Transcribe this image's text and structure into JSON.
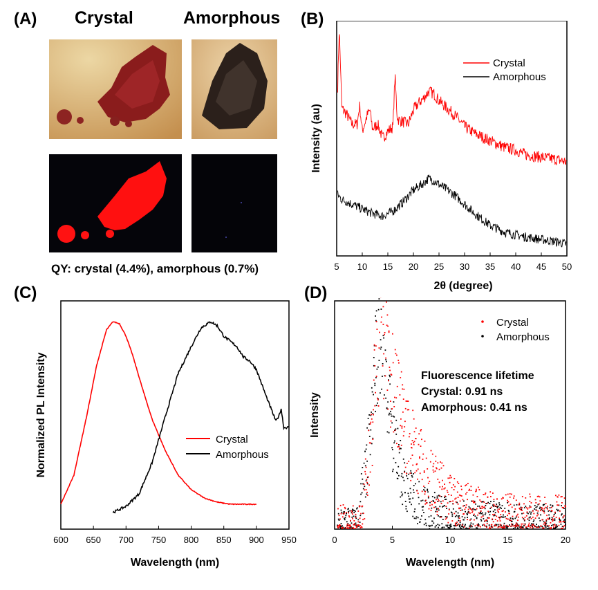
{
  "panels": {
    "a": {
      "label": "(A)",
      "crystal_title": "Crystal",
      "amorphous_title": "Amorphous",
      "qy_caption": "QY: crystal (4.4%), amorphous (0.7%)"
    },
    "b": {
      "label": "(B)"
    },
    "c": {
      "label": "(C)"
    },
    "d": {
      "label": "(D)"
    }
  },
  "colors": {
    "crystal": "#ff0000",
    "amorphous": "#000000"
  },
  "chart_data": [
    {
      "type": "line",
      "panel": "B",
      "xlabel": "2θ (degree)",
      "ylabel": "Intensity (au)",
      "xlim": [
        5,
        50
      ],
      "ylim": [
        0,
        100
      ],
      "xticks": [
        5,
        10,
        15,
        20,
        25,
        30,
        35,
        40,
        45,
        50
      ],
      "yticks_shown": false,
      "legend": "top-right",
      "series": [
        {
          "name": "Crystal",
          "color": "#ff0000",
          "x": [
            5.2,
            5.5,
            5.7,
            6,
            7,
            8,
            9,
            9.5,
            10,
            11,
            11.5,
            12,
            13,
            14,
            15,
            16,
            16.4,
            16.8,
            17,
            18,
            19,
            20,
            21,
            22,
            23,
            24,
            25,
            26,
            28,
            30,
            32,
            35,
            38,
            40,
            42,
            45,
            48,
            50
          ],
          "y": [
            72,
            97,
            84,
            63,
            60,
            56,
            56,
            64,
            53,
            60,
            62,
            54,
            56,
            50,
            53,
            55,
            77,
            60,
            58,
            57,
            56,
            62,
            65,
            67,
            70,
            69,
            66,
            64,
            60,
            55,
            52,
            49,
            46,
            45,
            43,
            42,
            41,
            40
          ]
        },
        {
          "name": "Amorphous",
          "color": "#000000",
          "x": [
            5.2,
            6,
            8,
            10,
            12,
            14,
            16,
            18,
            20,
            22,
            23,
            24,
            26,
            28,
            30,
            32,
            35,
            38,
            40,
            42,
            45,
            48,
            50
          ],
          "y": [
            26,
            24,
            22,
            20,
            18,
            17,
            19,
            23,
            28,
            31,
            33,
            32,
            29,
            26,
            22,
            18,
            13,
            10,
            9,
            8,
            7,
            6,
            5
          ]
        }
      ]
    },
    {
      "type": "line",
      "panel": "C",
      "xlabel": "Wavelength (nm)",
      "ylabel": "Normalized PL Intensity",
      "xlim": [
        600,
        950
      ],
      "ylim": [
        0,
        1.1
      ],
      "xticks": [
        600,
        650,
        700,
        750,
        800,
        850,
        900,
        950
      ],
      "yticks_shown": false,
      "legend": "center-right",
      "series": [
        {
          "name": "Crystal",
          "color": "#ff0000",
          "x": [
            600,
            620,
            640,
            655,
            670,
            680,
            690,
            700,
            710,
            725,
            740,
            760,
            780,
            800,
            820,
            840,
            860,
            880,
            900
          ],
          "y": [
            0.12,
            0.26,
            0.55,
            0.79,
            0.96,
            1.0,
            0.99,
            0.93,
            0.84,
            0.68,
            0.53,
            0.38,
            0.26,
            0.19,
            0.15,
            0.13,
            0.12,
            0.12,
            0.12
          ]
        },
        {
          "name": "Amorphous",
          "color": "#000000",
          "x": [
            680,
            700,
            720,
            740,
            760,
            780,
            800,
            815,
            830,
            840,
            850,
            870,
            880,
            890,
            900,
            915,
            930,
            935,
            938,
            942,
            950
          ],
          "y": [
            0.08,
            0.11,
            0.17,
            0.32,
            0.54,
            0.75,
            0.88,
            0.97,
            1.0,
            0.98,
            0.93,
            0.88,
            0.83,
            0.81,
            0.77,
            0.64,
            0.52,
            0.55,
            0.58,
            0.49,
            0.49
          ]
        }
      ]
    },
    {
      "type": "scatter",
      "panel": "D",
      "xlabel": "Wavelength (nm)",
      "ylabel": "Intensity",
      "xlim": [
        0,
        20
      ],
      "ylim": [
        0,
        1.1
      ],
      "xticks": [
        0,
        5,
        10,
        15,
        20
      ],
      "yticks_shown": false,
      "legend": "top-right",
      "annotation": {
        "title": "Fluorescence lifetime",
        "crystal": "Crystal: 0.91 ns",
        "amorphous": "Amorphous: 0.41 ns"
      },
      "series": [
        {
          "name": "Crystal",
          "color": "#ff0000",
          "rise": 0.6,
          "peak_x": 3.9,
          "tau": 2.2,
          "x": [
            2.4,
            3.0,
            3.5,
            3.9,
            4.5,
            5.0,
            6.0,
            7.0,
            8.0,
            9.0,
            10.0,
            12.0,
            14.0,
            16.0,
            18.0,
            20.0
          ],
          "y": [
            0.1,
            0.38,
            0.75,
            1.0,
            0.84,
            0.72,
            0.48,
            0.37,
            0.26,
            0.2,
            0.15,
            0.1,
            0.08,
            0.07,
            0.07,
            0.07
          ]
        },
        {
          "name": "Amorphous",
          "color": "#000000",
          "rise": 0.55,
          "peak_x": 3.8,
          "tau": 1.2,
          "x": [
            2.0,
            2.6,
            3.2,
            3.8,
            4.4,
            5.0,
            6.0,
            7.0,
            8.0,
            9.0,
            10.0,
            12.0,
            14.0,
            16.0,
            18.0,
            20.0
          ],
          "y": [
            0.08,
            0.25,
            0.6,
            1.0,
            0.66,
            0.45,
            0.22,
            0.14,
            0.1,
            0.08,
            0.06,
            0.05,
            0.05,
            0.04,
            0.04,
            0.04
          ]
        }
      ]
    }
  ]
}
